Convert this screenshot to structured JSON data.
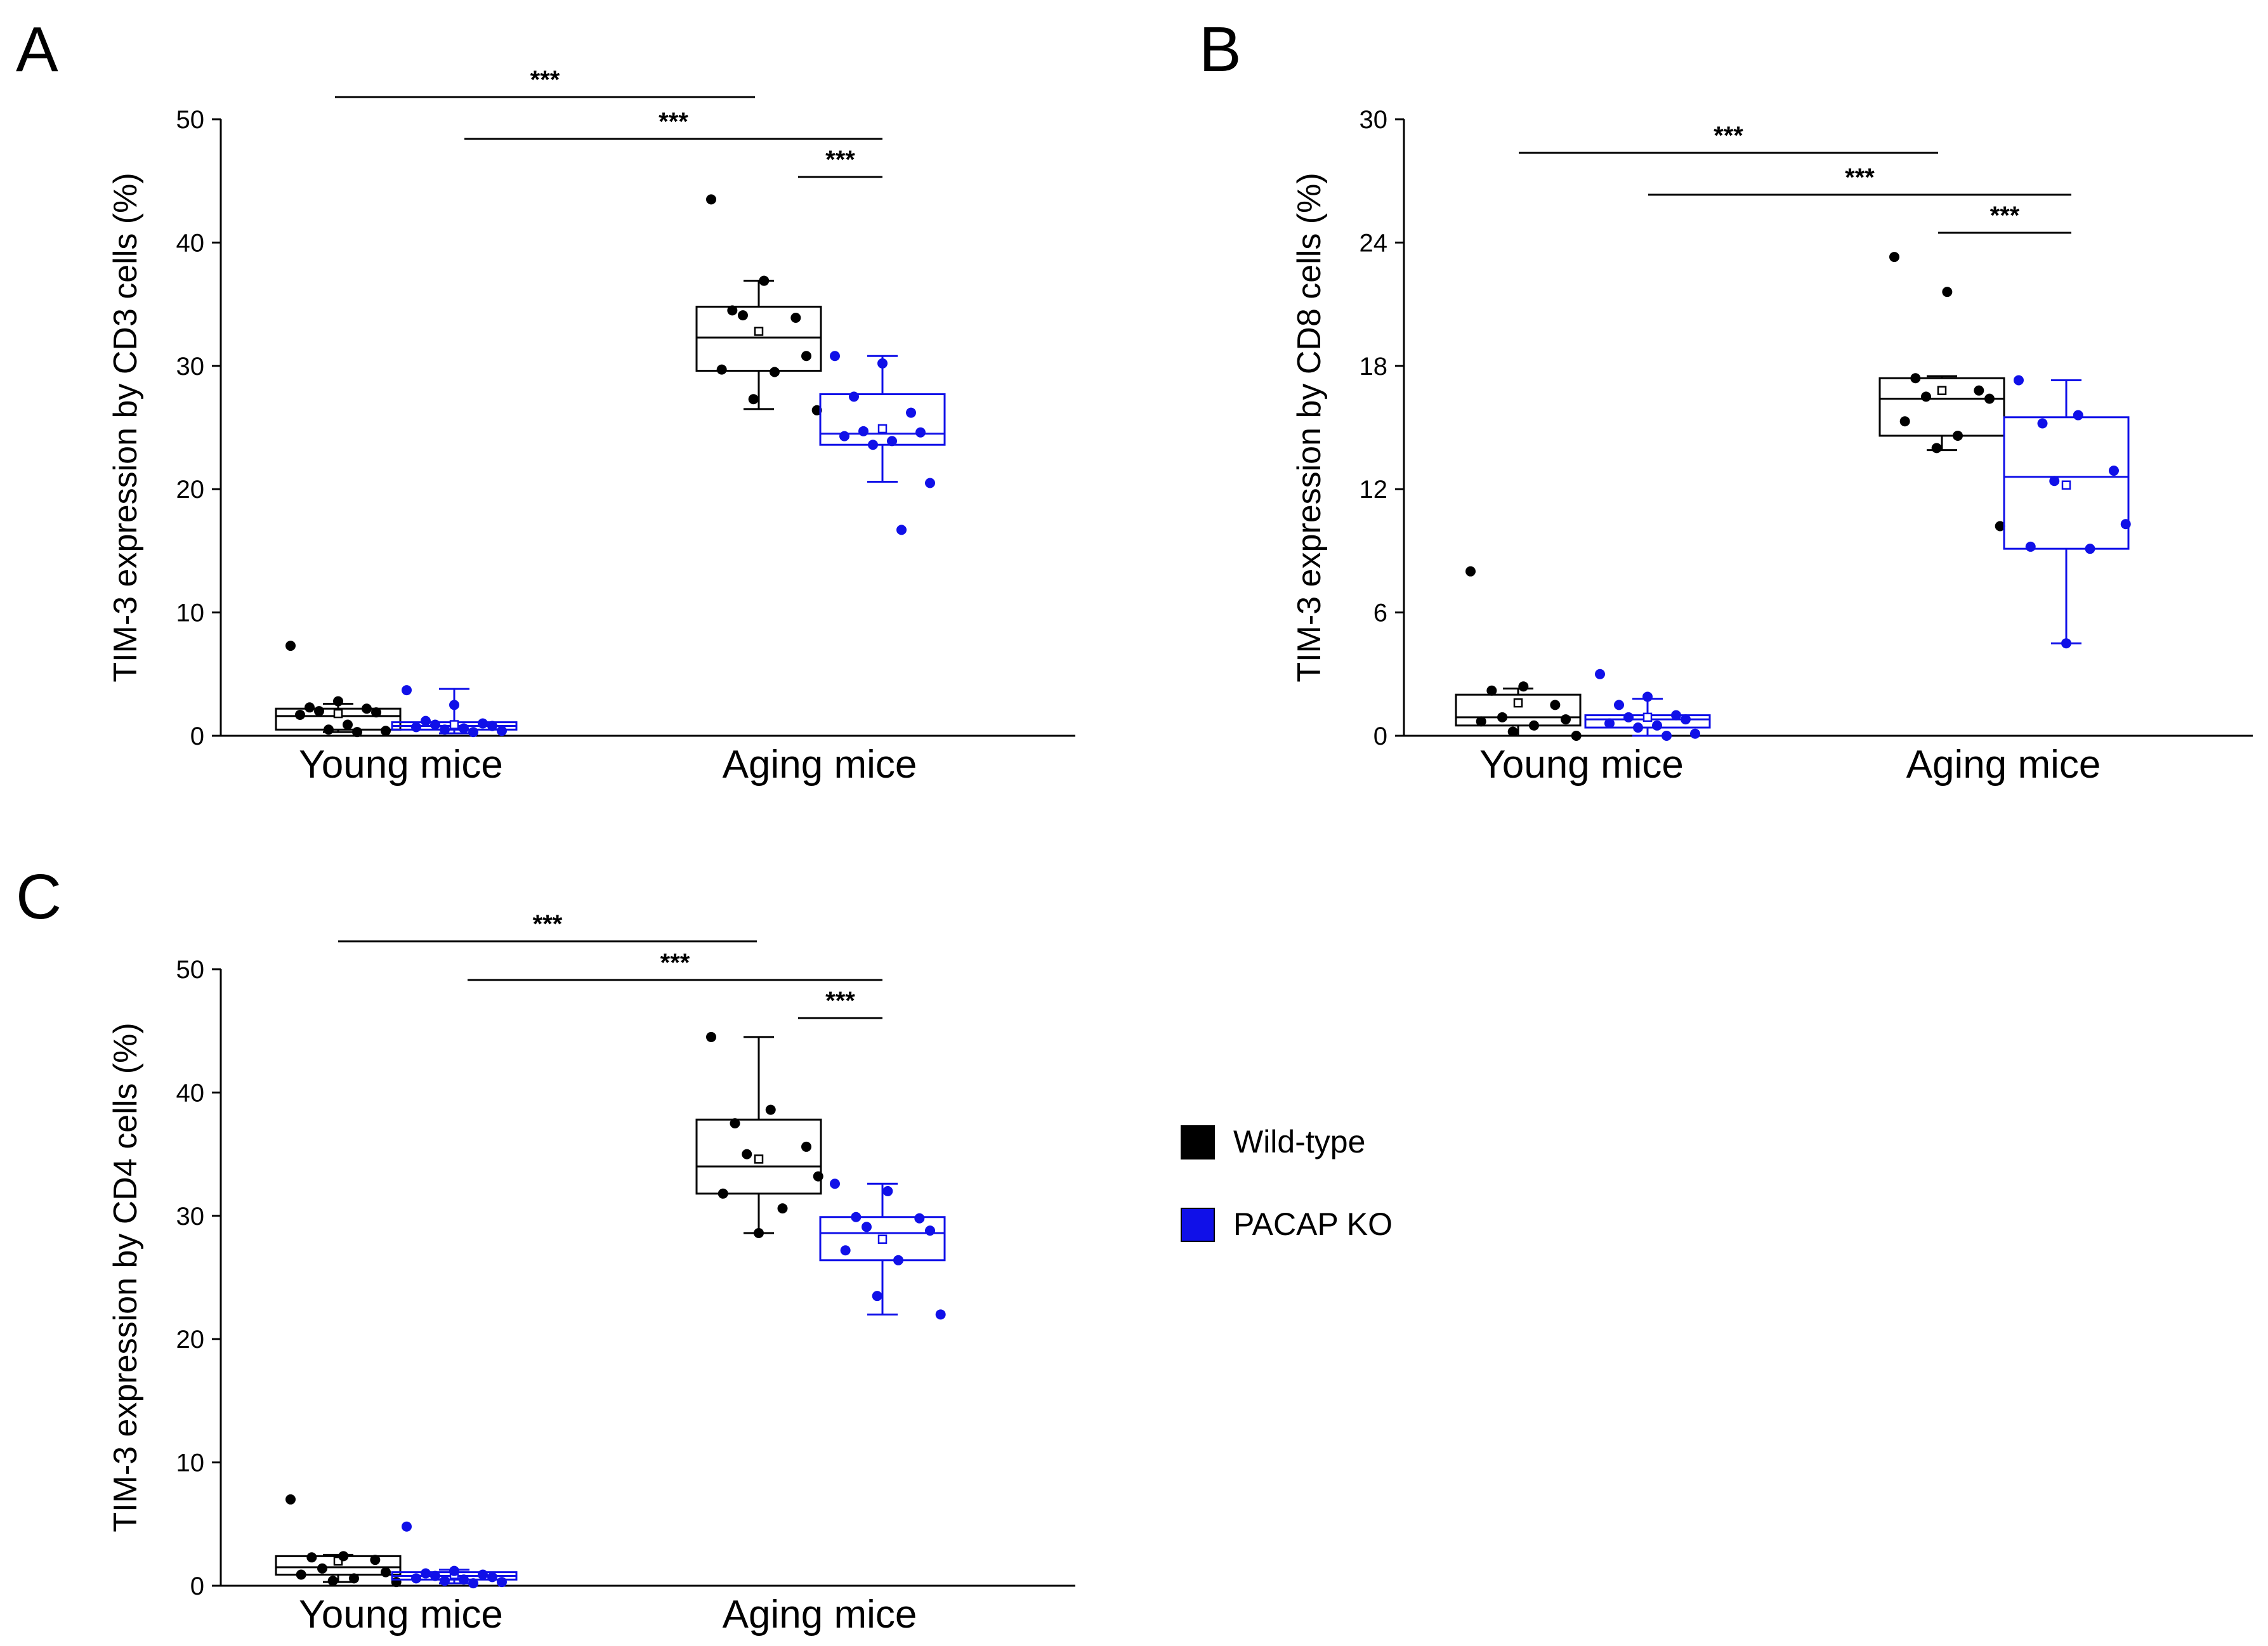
{
  "colors": {
    "wild_type": "#000000",
    "pacap_ko": "#1010e8",
    "axis": "#000000"
  },
  "legend": {
    "items": [
      {
        "label": "Wild-type",
        "color": "#000000"
      },
      {
        "label": "PACAP KO",
        "color": "#1010e8"
      }
    ]
  },
  "chart_data": [
    {
      "panel": "A",
      "type": "box",
      "ylabel": "TIM-3 expression by CD3 cells (%)",
      "ylim": [
        0,
        50
      ],
      "yticks": [
        0,
        10,
        20,
        30,
        40,
        50
      ],
      "categories": [
        "Young mice",
        "Aging mice"
      ],
      "significance": [
        {
          "from": "Young mice / Wild-type",
          "to": "Aging mice / Wild-type",
          "label": "***"
        },
        {
          "from": "Young mice / PACAP KO",
          "to": "Aging mice / PACAP KO",
          "label": "***"
        },
        {
          "from": "Aging mice / Wild-type",
          "to": "Aging mice / PACAP KO",
          "label": "***"
        }
      ],
      "groups": [
        {
          "category": "Young mice",
          "series": "Wild-type",
          "q1": 0.5,
          "median": 1.6,
          "q3": 2.2,
          "min": 0.3,
          "max": 2.6,
          "mean": 1.8,
          "points": [
            7.3,
            2.8,
            2.3,
            2.2,
            2.0,
            1.9,
            1.7,
            0.9,
            0.5,
            0.4,
            0.3
          ]
        },
        {
          "category": "Young mice",
          "series": "PACAP KO",
          "q1": 0.5,
          "median": 0.8,
          "q3": 1.1,
          "min": 0.2,
          "max": 3.8,
          "mean": 0.9,
          "points": [
            3.7,
            2.5,
            1.2,
            1.0,
            0.9,
            0.8,
            0.7,
            0.6,
            0.5,
            0.4,
            0.3
          ]
        },
        {
          "category": "Aging mice",
          "series": "Wild-type",
          "q1": 29.6,
          "median": 32.3,
          "q3": 34.8,
          "min": 26.5,
          "max": 36.9,
          "mean": 32.8,
          "points": [
            43.5,
            36.9,
            34.5,
            33.9,
            34.1,
            30.8,
            29.7,
            29.5,
            27.3,
            26.4
          ]
        },
        {
          "category": "Aging mice",
          "series": "PACAP KO",
          "q1": 23.6,
          "median": 24.5,
          "q3": 27.7,
          "min": 20.6,
          "max": 30.8,
          "mean": 24.9,
          "points": [
            30.8,
            30.2,
            27.5,
            26.2,
            24.7,
            24.6,
            24.3,
            23.9,
            23.6,
            20.5,
            16.7
          ]
        }
      ]
    },
    {
      "panel": "B",
      "type": "box",
      "ylabel": "TIM-3 expression by CD8 cells (%)",
      "ylim": [
        0,
        30
      ],
      "yticks": [
        0,
        6,
        12,
        18,
        24,
        30
      ],
      "categories": [
        "Young mice",
        "Aging mice"
      ],
      "significance": [
        {
          "from": "Young mice / Wild-type",
          "to": "Aging mice / Wild-type",
          "label": "***"
        },
        {
          "from": "Young mice / PACAP KO",
          "to": "Aging mice / PACAP KO",
          "label": "***"
        },
        {
          "from": "Aging mice / Wild-type",
          "to": "Aging mice / PACAP KO",
          "label": "***"
        }
      ],
      "groups": [
        {
          "category": "Young mice",
          "series": "Wild-type",
          "q1": 0.5,
          "median": 0.9,
          "q3": 2.0,
          "min": 0.0,
          "max": 2.3,
          "mean": 1.6,
          "points": [
            8.0,
            2.4,
            2.2,
            1.5,
            0.9,
            0.8,
            0.7,
            0.5,
            0.2,
            0.0
          ]
        },
        {
          "category": "Young mice",
          "series": "PACAP KO",
          "q1": 0.4,
          "median": 0.8,
          "q3": 1.0,
          "min": 0.0,
          "max": 1.8,
          "mean": 0.9,
          "points": [
            3.0,
            1.9,
            1.5,
            1.0,
            0.9,
            0.8,
            0.6,
            0.5,
            0.4,
            0.1,
            0.0
          ]
        },
        {
          "category": "Aging mice",
          "series": "Wild-type",
          "q1": 14.6,
          "median": 16.4,
          "q3": 17.4,
          "min": 13.9,
          "max": 17.5,
          "mean": 16.8,
          "points": [
            23.3,
            21.6,
            17.4,
            16.8,
            16.5,
            16.4,
            15.3,
            14.6,
            14.0,
            10.2
          ]
        },
        {
          "category": "Aging mice",
          "series": "PACAP KO",
          "q1": 9.1,
          "median": 12.6,
          "q3": 15.5,
          "min": 4.5,
          "max": 17.3,
          "mean": 12.2,
          "points": [
            17.3,
            15.6,
            15.2,
            12.9,
            12.4,
            10.3,
            9.2,
            9.1,
            4.5
          ]
        }
      ]
    },
    {
      "panel": "C",
      "type": "box",
      "ylabel": "TIM-3 expression by CD4 cells (%)",
      "ylim": [
        0,
        50
      ],
      "yticks": [
        0,
        10,
        20,
        30,
        40,
        50
      ],
      "categories": [
        "Young mice",
        "Aging mice"
      ],
      "significance": [
        {
          "from": "Young mice / Wild-type",
          "to": "Aging mice / Wild-type",
          "label": "***"
        },
        {
          "from": "Young mice / PACAP KO",
          "to": "Aging mice / PACAP KO",
          "label": "***"
        },
        {
          "from": "Aging mice / Wild-type",
          "to": "Aging mice / PACAP KO",
          "label": "***"
        }
      ],
      "groups": [
        {
          "category": "Young mice",
          "series": "Wild-type",
          "q1": 0.9,
          "median": 1.5,
          "q3": 2.4,
          "min": 0.3,
          "max": 2.5,
          "mean": 2.0,
          "points": [
            7.0,
            2.4,
            2.3,
            2.1,
            1.4,
            1.1,
            0.9,
            0.6,
            0.4,
            0.3
          ]
        },
        {
          "category": "Young mice",
          "series": "PACAP KO",
          "q1": 0.5,
          "median": 0.8,
          "q3": 1.1,
          "min": 0.2,
          "max": 1.3,
          "mean": 0.9,
          "points": [
            4.8,
            1.2,
            1.0,
            0.9,
            0.8,
            0.7,
            0.6,
            0.5,
            0.4,
            0.3,
            0.2
          ]
        },
        {
          "category": "Aging mice",
          "series": "Wild-type",
          "q1": 31.8,
          "median": 34.0,
          "q3": 37.8,
          "min": 28.6,
          "max": 44.5,
          "mean": 34.6,
          "points": [
            44.5,
            38.6,
            37.5,
            35.6,
            35.0,
            33.2,
            31.8,
            30.6,
            28.6
          ]
        },
        {
          "category": "Aging mice",
          "series": "PACAP KO",
          "q1": 26.4,
          "median": 28.6,
          "q3": 29.9,
          "min": 22.0,
          "max": 32.6,
          "mean": 28.1,
          "points": [
            32.6,
            32.0,
            29.9,
            29.8,
            29.1,
            28.8,
            27.2,
            26.4,
            23.5,
            22.0
          ]
        }
      ]
    }
  ]
}
